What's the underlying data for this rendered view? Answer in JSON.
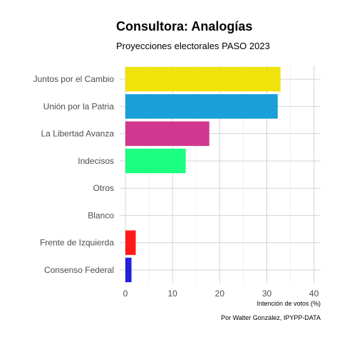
{
  "chart_data": {
    "type": "bar",
    "orientation": "horizontal",
    "title": "Consultora: Analogías",
    "subtitle": "Proyecciones electorales PASO 2023",
    "categories": [
      "Juntos por el Cambio",
      "Unión por la Patria",
      "La Libertad Avanza",
      "Indecisos",
      "Otros",
      "Blanco",
      "Frente de Izquierda",
      "Consenso Federal"
    ],
    "values": [
      32.9,
      32.3,
      17.8,
      12.8,
      0,
      0,
      2.2,
      1.3
    ],
    "colors": [
      "#f0e30c",
      "#1a9fd9",
      "#d1378e",
      "#1aff80",
      "#999999",
      "#ffffff",
      "#ff1a1a",
      "#2222dd"
    ],
    "xlabel": "Intención de votos (%)",
    "ylabel": "",
    "xlim": [
      -1.2,
      41.4
    ],
    "xticks": [
      0,
      10,
      20,
      30,
      40
    ],
    "caption": "Por Walter González, IPYPP-DATA",
    "grid": true
  }
}
